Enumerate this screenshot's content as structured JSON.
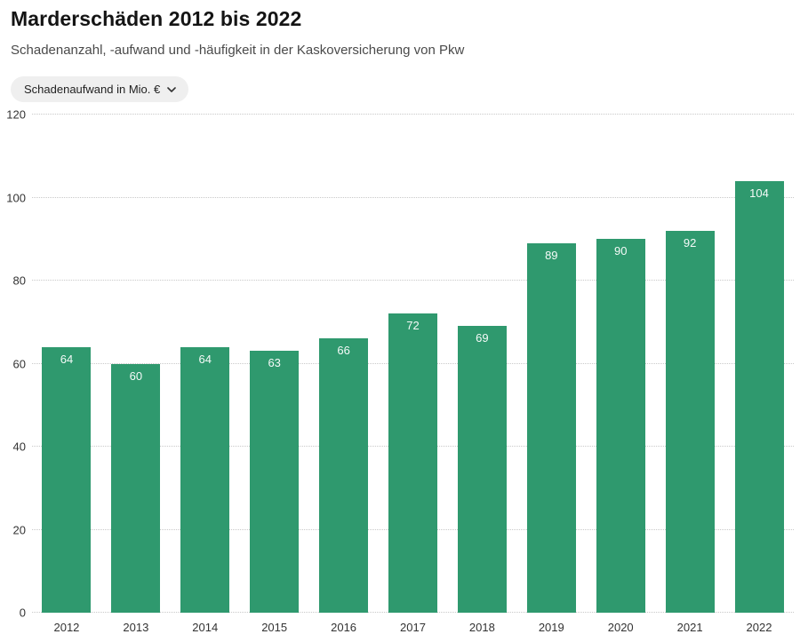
{
  "header": {
    "title": "Marderschäden 2012 bis 2022",
    "subtitle": "Schadenanzahl, -aufwand und -häufigkeit in der Kaskoversicherung von Pkw"
  },
  "metric_dropdown": {
    "selected": "Schadenaufwand in Mio. €",
    "chevron_icon": "chevron-down"
  },
  "chart_data": {
    "type": "bar",
    "title": "Marderschäden 2012 bis 2022",
    "series_name": "Schadenaufwand in Mio. €",
    "categories": [
      "2012",
      "2013",
      "2014",
      "2015",
      "2016",
      "2017",
      "2018",
      "2019",
      "2020",
      "2021",
      "2022"
    ],
    "values": [
      64,
      60,
      64,
      63,
      66,
      72,
      69,
      89,
      90,
      92,
      104
    ],
    "xlabel": "",
    "ylabel": "",
    "ylim": [
      0,
      120
    ],
    "yticks": [
      0,
      20,
      40,
      60,
      80,
      100,
      120
    ],
    "grid": "horizontal-dotted",
    "legend": "none",
    "value_labels": "inside-top"
  },
  "colors": {
    "bar": "#2F996E",
    "value_label": "#f5faf8",
    "grid": "#c9c9c9",
    "tick_label": "#333333",
    "title": "#141414",
    "subtitle": "#4a4a4a",
    "pill_bg": "#efefef"
  }
}
